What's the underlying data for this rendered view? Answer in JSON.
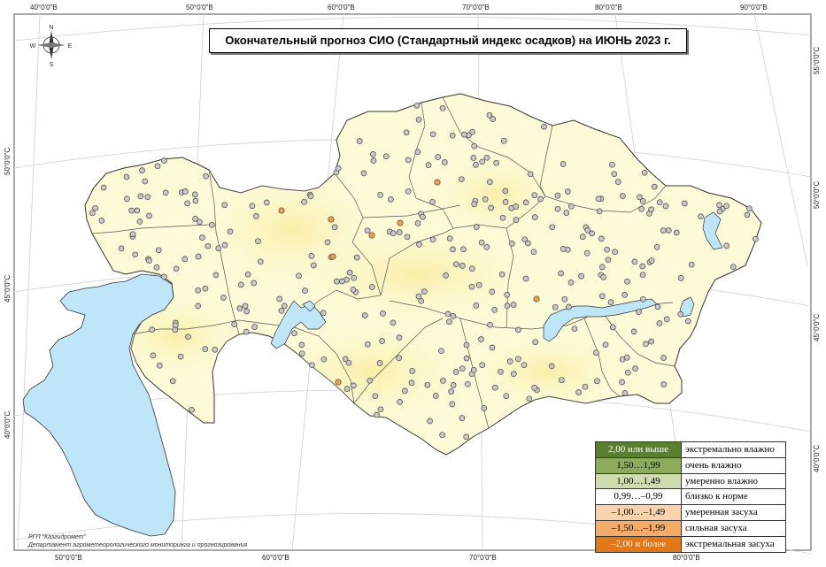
{
  "title": "Окончательный прогноз СИО (Стандартный индекс осадков) на ИЮНЬ 2023 г.",
  "compass": {
    "n": "N",
    "s": "S",
    "e": "E",
    "w": "W",
    "icon": "compass-rose-icon"
  },
  "ticks": {
    "top": [
      "40°0'0\"В",
      "50°0'0\"В",
      "60°0'0\"В",
      "70°0'0\"В",
      "80°0'0\"В",
      "90°0'0\"В"
    ],
    "bottom": [
      "50°0'0\"В",
      "60°0'0\"В",
      "70°0'0\"В",
      "80°0'0\"В"
    ],
    "left": [
      "50°0'0\"С",
      "45°0'0\"С",
      "40°0'0\"С"
    ],
    "right": [
      "55°0'0\"С",
      "50°0'0\"С",
      "45°0'0\"С",
      "40°0'0\"С"
    ]
  },
  "credits": {
    "org": "РГП \"Казгидромет\"",
    "dept": "Департамент агрометеорологического мониторинга и прогнозирования"
  },
  "legend": [
    {
      "range": "2,00 или выше",
      "label": "экстремально влажно",
      "color": "#5a7f2e"
    },
    {
      "range": "1,50…1,99",
      "label": "очень влажно",
      "color": "#8cab5c"
    },
    {
      "range": "1,00…1,49",
      "label": "умеренно влажно",
      "color": "#cfdcb0"
    },
    {
      "range": "0,99…–0,99",
      "label": "близко к норме",
      "color": "#ffffff"
    },
    {
      "range": "–1,00…–1,49",
      "label": "умеренная засуха",
      "color": "#f9d3ad"
    },
    {
      "range": "–1,50…–1,99",
      "label": "сильная засуха",
      "color": "#f4ac6a"
    },
    {
      "range": "–2,00 и более",
      "label": "экстремальная засуха",
      "color": "#e07819"
    }
  ],
  "colors": {
    "land": "#fdfad7",
    "land_warm": "#fbf1b6",
    "water": "#bfe6f8",
    "station_normal": "#c8c8c8",
    "station_drought": "#f0a048",
    "grid": "#d0d0d0"
  },
  "map_features": {
    "stations_near_normal_count": 346,
    "stations_moderate_drought_count": 8
  }
}
